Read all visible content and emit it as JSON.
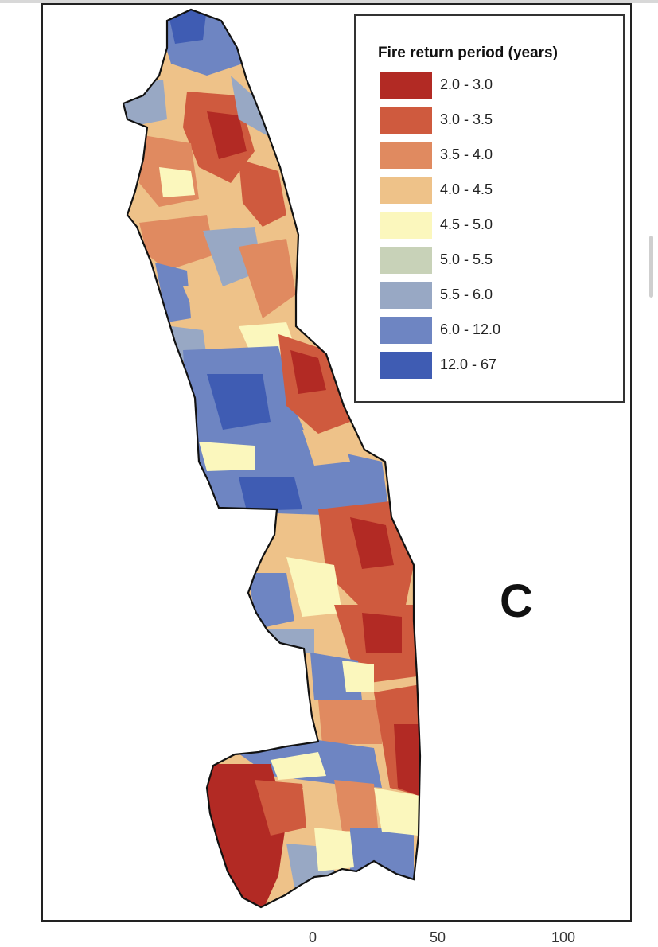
{
  "legend": {
    "title": "Fire return period (years)",
    "items": [
      {
        "label": "2.0 - 3.0",
        "color": "#b22a24"
      },
      {
        "label": "3.0 - 3.5",
        "color": "#cf5a3e"
      },
      {
        "label": "3.5 - 4.0",
        "color": "#e08a60"
      },
      {
        "label": "4.0 - 4.5",
        "color": "#eec289"
      },
      {
        "label": "4.5 - 5.0",
        "color": "#fbf7bd"
      },
      {
        "label": "5.0 - 5.5",
        "color": "#c8d2b8"
      },
      {
        "label": "5.5 - 6.0",
        "color": "#98a8c4"
      },
      {
        "label": "6.0 - 12.0",
        "color": "#6e85c2"
      },
      {
        "label": "12.0 - 67",
        "color": "#3f5cb3"
      }
    ]
  },
  "panel_label": "C",
  "scale_bar": {
    "ticks": [
      "0",
      "50",
      "100"
    ]
  }
}
